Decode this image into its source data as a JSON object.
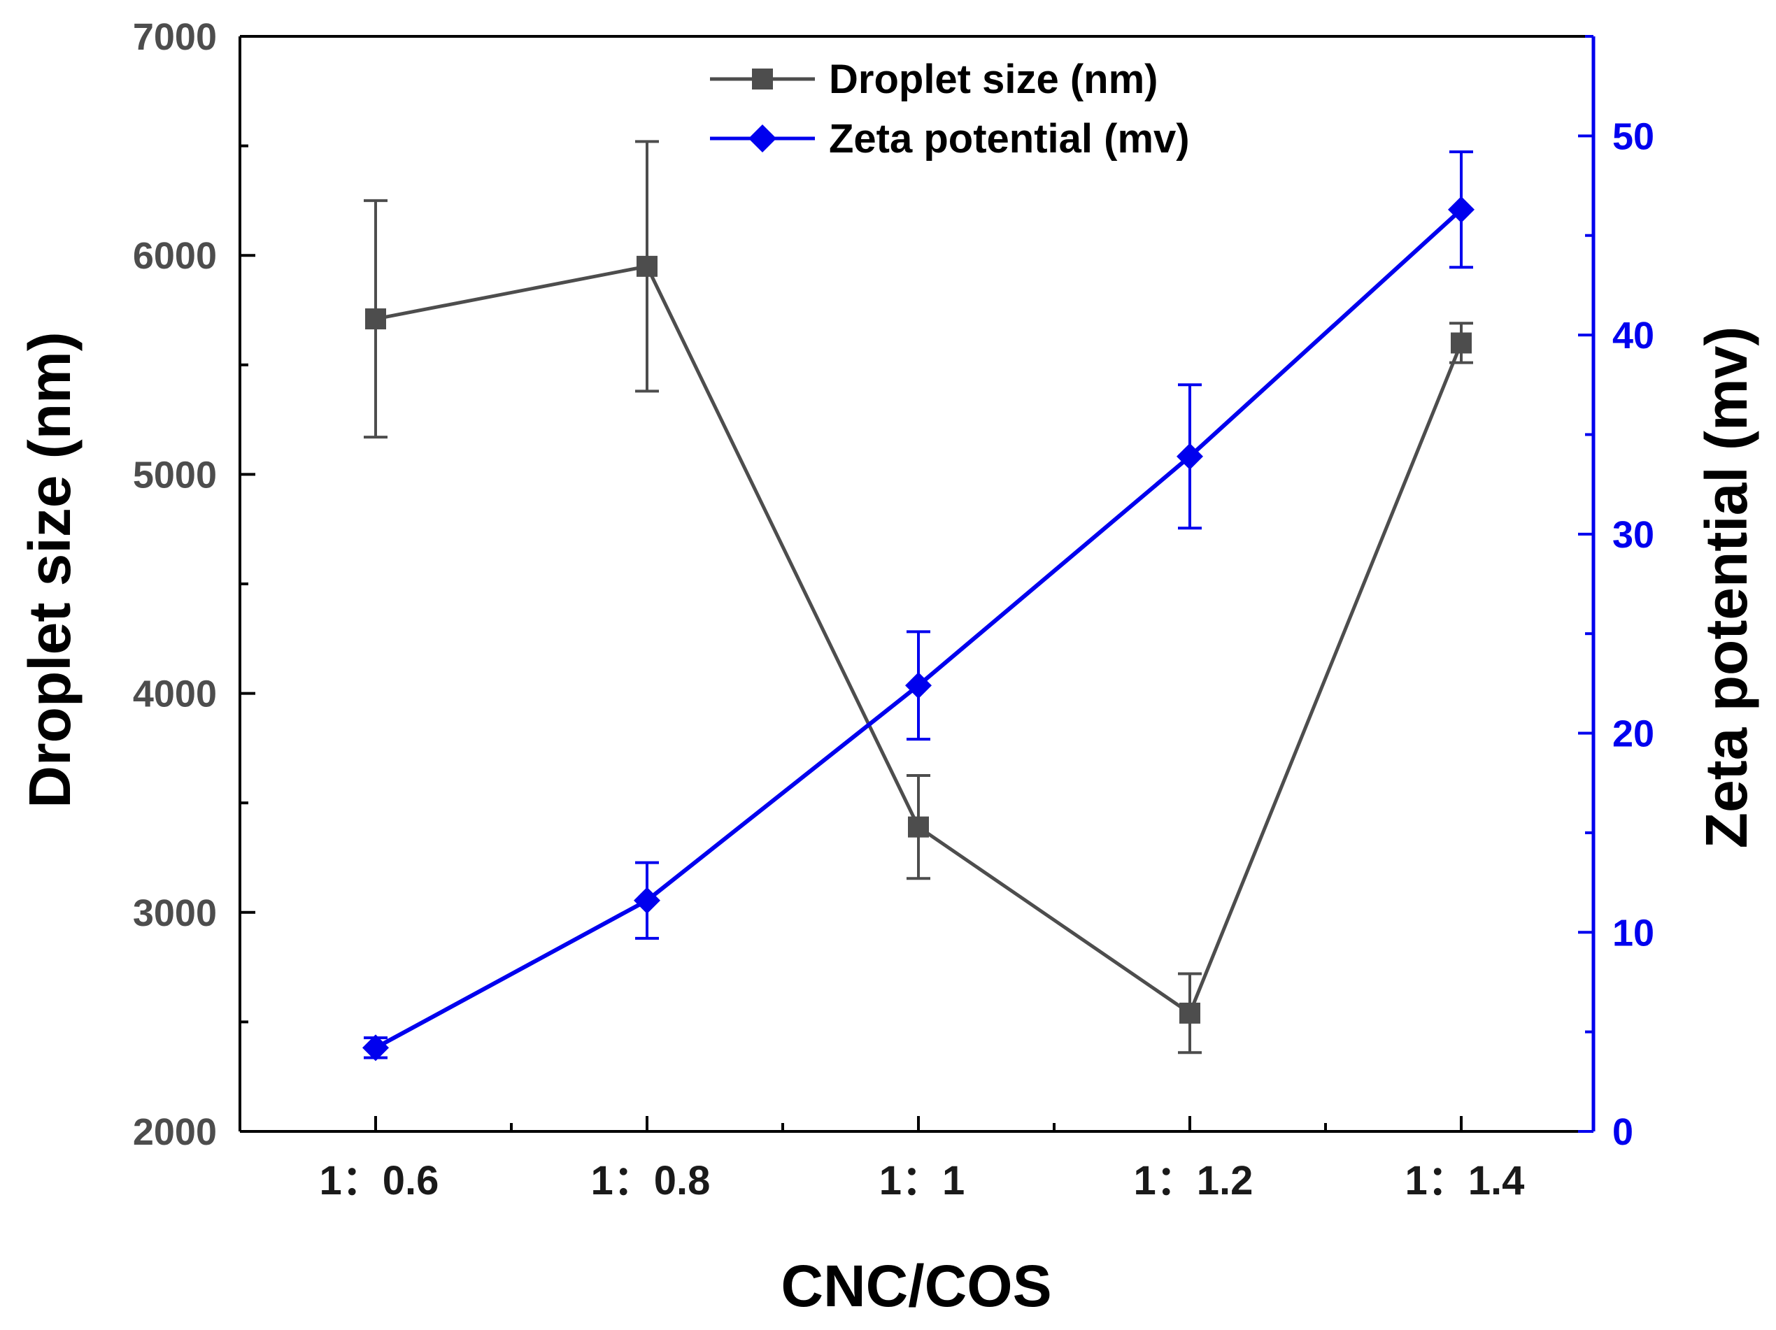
{
  "chart_data": {
    "type": "line",
    "xlabel": "CNC/COS",
    "categories": [
      "1：0.6",
      "1：0.8",
      "1：1",
      "1：1.2",
      "1：1.4"
    ],
    "y_left": {
      "label": "Droplet size (nm)",
      "lim": [
        2000,
        7000
      ],
      "ticks": [
        2000,
        3000,
        4000,
        5000,
        6000,
        7000
      ]
    },
    "y_right": {
      "label": "Zeta potential (mv)",
      "lim": [
        0,
        55
      ],
      "ticks": [
        0,
        10,
        20,
        30,
        40,
        50
      ]
    },
    "series": [
      {
        "name": "Droplet size (nm)",
        "axis": "left",
        "marker": "square",
        "color": "#4d4d4d",
        "values": [
          5710,
          5950,
          3390,
          2540,
          5600
        ],
        "errors": [
          540,
          570,
          235,
          180,
          90
        ]
      },
      {
        "name": "Zeta potential (mv)",
        "axis": "right",
        "marker": "diamond",
        "color": "#0000ee",
        "values": [
          4.2,
          11.6,
          22.4,
          33.9,
          46.3
        ],
        "errors": [
          0.5,
          1.9,
          2.7,
          3.6,
          2.9
        ]
      }
    ],
    "legend": {
      "position": "top-center",
      "entries": [
        "Droplet size (nm)",
        "Zeta potential (mv)"
      ]
    }
  }
}
